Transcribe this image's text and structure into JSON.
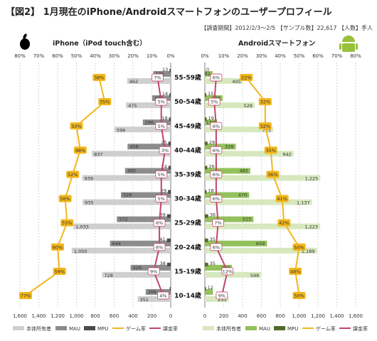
{
  "title": "【図2】 1月現在のiPhone/Androidスマートフォンのユーザープロフィール",
  "meta": "【調査期間】2012/2/3～2/5 【サンプル数】22,617 【人数】手人",
  "icons": {
    "left": "apple-logo-icon",
    "right": "android-logo-icon"
  },
  "colors": {
    "owners": "#cfcfcf",
    "owners_android": "#d7e8bf",
    "mau": "#8c8c8c",
    "mau_android": "#93c15b",
    "mpu": "#4b4b4b",
    "mpu_android": "#4f6b2a",
    "game": "#f2b61a",
    "billing": "#c2456a"
  },
  "legend": [
    "本体所有者",
    "MAU",
    "MPU",
    "ゲーム率",
    "課金率"
  ],
  "chart_data": [
    {
      "type": "bar",
      "subtitle": "iPhone（iPod touch含む）",
      "orientation": "horizontal",
      "direction": "right-to-left",
      "categories": [
        "55-59歳",
        "50-54歳",
        "45-49歳",
        "40-44歳",
        "35-39歳",
        "30-34歳",
        "25-29歳",
        "20-24歳",
        "15-19歳",
        "10-14歳"
      ],
      "bar_axis": {
        "range": [
          0,
          1600
        ],
        "ticks": [
          "1,600",
          "1,400",
          "1,200",
          "1,000",
          "800",
          "600",
          "400",
          "200",
          "0"
        ]
      },
      "pct_axis": {
        "range": [
          0,
          80
        ],
        "ticks": [
          "80%",
          "70%",
          "60%",
          "50%",
          "40%",
          "30%",
          "20%",
          "10%",
          "0%"
        ]
      },
      "series": [
        {
          "name": "本体所有者",
          "values": [
            462,
            475,
            596,
            837,
            939,
            935,
            1033,
            1050,
            728,
            351
          ],
          "labels": [
            "462",
            "475",
            "596",
            "837",
            "939",
            "935",
            "1,033",
            "1,050",
            "728",
            "351"
          ]
        },
        {
          "name": "MAU",
          "values": [
            185,
            197,
            296,
            458,
            485,
            528,
            572,
            644,
            426,
            266
          ],
          "labels": [
            "185",
            "197",
            "296",
            "458",
            "485",
            "528",
            "572",
            "644",
            "426",
            "266"
          ]
        },
        {
          "name": "MPU",
          "values": [
            13,
            14,
            18,
            25,
            24,
            29,
            39,
            41,
            38,
            10
          ],
          "labels": [
            "13",
            "14",
            "18",
            "25",
            "24",
            "29",
            "39",
            "41",
            "38",
            ""
          ]
        },
        {
          "name": "ゲーム率",
          "values": [
            38,
            35,
            50,
            48,
            52,
            56,
            55,
            60,
            59,
            77
          ],
          "labels": [
            "38%",
            "35%",
            "50%",
            "48%",
            "52%",
            "56%",
            "55%",
            "60%",
            "59%",
            "77%"
          ]
        },
        {
          "name": "課金率",
          "values": [
            7,
            5,
            5,
            3,
            5,
            5,
            6,
            6,
            9,
            4
          ],
          "labels": [
            "7%",
            "5%",
            "5%",
            "3%",
            "5%",
            "5%",
            "6%",
            "6%",
            "9%",
            "4%"
          ]
        }
      ]
    },
    {
      "type": "bar",
      "subtitle": "Androidスマートフォン",
      "orientation": "horizontal",
      "direction": "left-to-right",
      "categories": [
        "55-59歳",
        "50-54歳",
        "45-49歳",
        "40-44歳",
        "35-39歳",
        "30-34歳",
        "25-29歳",
        "20-24歳",
        "15-19歳",
        "10-14歳"
      ],
      "bar_axis": {
        "range": [
          0,
          1600
        ],
        "ticks": [
          "0",
          "200",
          "400",
          "600",
          "800",
          "1,000",
          "1,200",
          "1,400",
          "1,600"
        ]
      },
      "pct_axis": {
        "range": [
          0,
          80
        ],
        "ticks": [
          "0%",
          "10%",
          "20%",
          "30%",
          "40%",
          "50%",
          "60%",
          "70%",
          "80%"
        ]
      },
      "series": [
        {
          "name": "本体所有者",
          "values": [
            405,
            528,
            725,
            942,
            1225,
            1137,
            1223,
            1189,
            598,
            253
          ],
          "labels": [
            "405",
            "528",
            "725",
            "942",
            "1,225",
            "1,137",
            "1,223",
            "1,189",
            "598",
            "253"
          ]
        },
        {
          "name": "MAU",
          "values": [
            82,
            188,
            130,
            328,
            482,
            470,
            515,
            659,
            288,
            86
          ],
          "labels": [
            "82",
            "188",
            "130",
            "328",
            "482",
            "470",
            "515",
            "659",
            "288",
            ""
          ]
        },
        {
          "name": "MPU",
          "values": [
            0,
            15,
            19,
            29,
            26,
            18,
            36,
            35,
            35,
            12
          ],
          "labels": [
            "0",
            "15",
            "19",
            "29",
            "26",
            "18",
            "36",
            "35",
            "35",
            "12"
          ]
        },
        {
          "name": "ゲーム率",
          "values": [
            22,
            32,
            32,
            35,
            36,
            41,
            42,
            50,
            48,
            50
          ],
          "labels": [
            "22%",
            "32%",
            "32%",
            "35%",
            "36%",
            "41%",
            "42%",
            "50%",
            "48%",
            "50%"
          ]
        },
        {
          "name": "課金率",
          "values": [
            6,
            5,
            6,
            6,
            6,
            6,
            7,
            6,
            12,
            9
          ],
          "labels": [
            "6%",
            "5%",
            "6%",
            "6%",
            "6%",
            "6%",
            "7%",
            "6%",
            "12%",
            "9%"
          ]
        }
      ]
    }
  ]
}
